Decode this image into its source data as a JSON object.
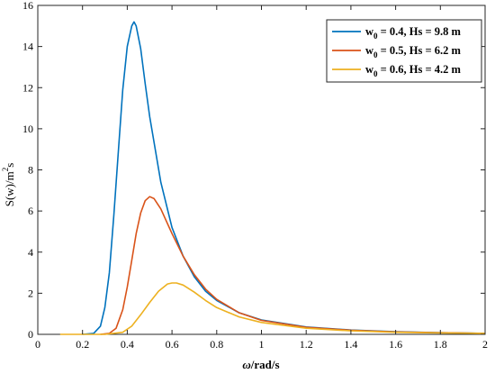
{
  "chart_data": {
    "type": "line",
    "xlabel_omega": "ω",
    "xlabel_rest": "/rad/s",
    "ylabel_main": "S(w)/m",
    "ylabel_sup": "2",
    "ylabel_tail": "s",
    "xlim": [
      0,
      2
    ],
    "ylim": [
      0,
      16
    ],
    "xticks": [
      "0",
      "0.2",
      "0.4",
      "0.6",
      "0.8",
      "1",
      "1.2",
      "1.4",
      "1.6",
      "1.8",
      "2"
    ],
    "yticks": [
      "0",
      "2",
      "4",
      "6",
      "8",
      "10",
      "12",
      "14",
      "16"
    ],
    "grid": false,
    "legend_position": "top-right",
    "series": [
      {
        "name_w": "w",
        "name_sub": "0",
        "name_rest": " = 0.4, Hs = 9.8 m",
        "color": "#0072BD",
        "x": [
          0.2,
          0.25,
          0.28,
          0.3,
          0.32,
          0.34,
          0.36,
          0.38,
          0.4,
          0.42,
          0.43,
          0.44,
          0.46,
          0.48,
          0.5,
          0.55,
          0.6,
          0.65,
          0.7,
          0.75,
          0.8,
          0.9,
          1.0,
          1.2,
          1.4,
          1.6,
          1.8,
          2.0
        ],
        "y": [
          0,
          0.05,
          0.4,
          1.3,
          3.0,
          5.8,
          8.9,
          11.9,
          14.0,
          15.0,
          15.2,
          15.0,
          13.9,
          12.2,
          10.6,
          7.4,
          5.2,
          3.8,
          2.8,
          2.1,
          1.65,
          1.05,
          0.7,
          0.36,
          0.21,
          0.13,
          0.08,
          0.05
        ]
      },
      {
        "name_w": "w",
        "name_sub": "0",
        "name_rest": " = 0.5, Hs = 6.2 m",
        "color": "#D95319",
        "x": [
          0.28,
          0.32,
          0.35,
          0.38,
          0.4,
          0.42,
          0.44,
          0.46,
          0.48,
          0.5,
          0.52,
          0.55,
          0.6,
          0.65,
          0.7,
          0.75,
          0.8,
          0.9,
          1.0,
          1.2,
          1.4,
          1.6,
          1.8,
          2.0
        ],
        "y": [
          0,
          0.05,
          0.3,
          1.2,
          2.3,
          3.6,
          4.9,
          5.9,
          6.5,
          6.7,
          6.6,
          6.1,
          4.9,
          3.8,
          2.9,
          2.2,
          1.7,
          1.05,
          0.68,
          0.34,
          0.2,
          0.12,
          0.08,
          0.05
        ]
      },
      {
        "name_w": "w",
        "name_sub": "0",
        "name_rest": " = 0.6, Hs = 4.2 m",
        "color": "#EDB120",
        "x": [
          0.1,
          0.3,
          0.38,
          0.42,
          0.46,
          0.5,
          0.54,
          0.58,
          0.6,
          0.62,
          0.65,
          0.7,
          0.75,
          0.8,
          0.9,
          1.0,
          1.2,
          1.4,
          1.6,
          1.8,
          2.0
        ],
        "y": [
          0,
          0,
          0.1,
          0.4,
          0.95,
          1.55,
          2.1,
          2.45,
          2.5,
          2.5,
          2.4,
          2.05,
          1.65,
          1.3,
          0.85,
          0.58,
          0.3,
          0.17,
          0.1,
          0.07,
          0.05
        ]
      }
    ]
  }
}
